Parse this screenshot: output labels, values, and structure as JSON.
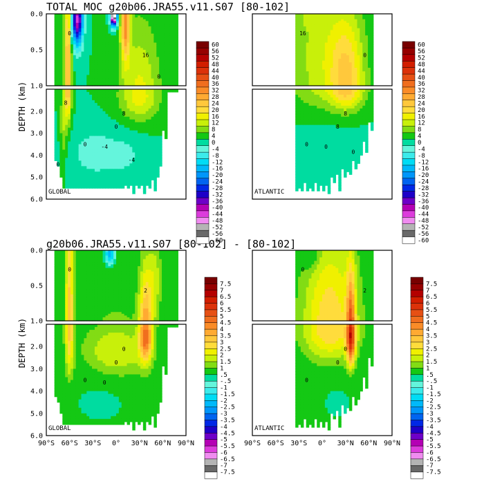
{
  "chart_data": {
    "type": "heatmap",
    "top_title": "TOTAL MOC g20b06.JRA55.v11.S07 [80-102]",
    "bottom_title": "g20b06.JRA55.v11.S07 [80-102]  -  [80-102]",
    "ylabel": "DEPTH (km)",
    "y_ticks": [
      "0.0",
      "0.5",
      "1.0",
      "2.0",
      "3.0",
      "4.0",
      "5.0",
      "6.0"
    ],
    "x_ticks": [
      "90°S",
      "60°S",
      "30°S",
      "0°",
      "30°N",
      "60°N",
      "90°N"
    ],
    "panels": [
      {
        "label": "GLOBAL",
        "basin": "global",
        "set": "total",
        "contour_labels": [
          "0",
          "16",
          "8",
          "0",
          "0",
          "-4",
          "-4",
          "8",
          "0",
          "0"
        ]
      },
      {
        "label": "ATLANTIC",
        "basin": "atlantic",
        "set": "total",
        "contour_labels": [
          "16",
          "0",
          "8",
          "8",
          "0",
          "0",
          "0"
        ]
      },
      {
        "label": "GLOBAL",
        "basin": "global",
        "set": "diff",
        "contour_labels": [
          "0",
          "2",
          "0",
          "0",
          "0",
          "0"
        ]
      },
      {
        "label": "ATLANTIC",
        "basin": "atlantic",
        "set": "diff",
        "contour_labels": [
          "0",
          "2",
          "0",
          "0",
          "0"
        ]
      }
    ],
    "colorbars": [
      {
        "set": "total",
        "levels": [
          "60",
          "56",
          "52",
          "48",
          "44",
          "40",
          "36",
          "32",
          "28",
          "24",
          "20",
          "16",
          "12",
          "8",
          "4",
          "0",
          "-4",
          "-8",
          "-12",
          "-16",
          "-20",
          "-24",
          "-28",
          "-32",
          "-36",
          "-40",
          "-44",
          "-48",
          "-52",
          "-56",
          "-60"
        ]
      },
      {
        "set": "diff",
        "levels": [
          "7.5",
          "7",
          "6.5",
          "6",
          "5.5",
          "5",
          "4.5",
          "4",
          "3.5",
          "3",
          "2.5",
          "2",
          "1.5",
          "1",
          ".5",
          "-.5",
          "-1",
          "-1.5",
          "-2",
          "-2.5",
          "-3",
          "-3.5",
          "-4",
          "-4.5",
          "-5",
          "-5.5",
          "-6",
          "-6.5",
          "-7",
          "-7.5"
        ]
      }
    ],
    "colors": [
      "#ffffff",
      "#696969",
      "#b4b4b4",
      "#f08cf0",
      "#dc3cdc",
      "#b400b4",
      "#6e00c8",
      "#1e00c8",
      "#0028e6",
      "#0064f0",
      "#0096fa",
      "#00b9fa",
      "#00dcf5",
      "#3cebeb",
      "#64f5dc",
      "#00dca0",
      "#14c814",
      "#82dc14",
      "#c8f00a",
      "#f0f000",
      "#ffdc3c",
      "#ffc83c",
      "#ffaa32",
      "#fa8c28",
      "#f06e1e",
      "#e65014",
      "#dc320a",
      "#d21e00",
      "#b40000",
      "#960000",
      "#780000"
    ]
  }
}
